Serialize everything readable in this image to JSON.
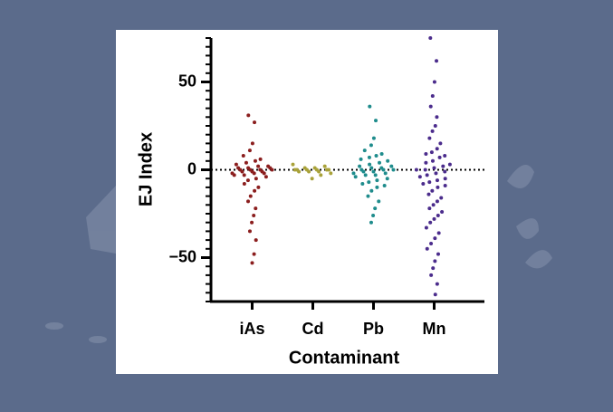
{
  "chart_data": {
    "type": "beeswarm",
    "ylabel": "EJ Index",
    "xlabel": "Contaminant",
    "categories": [
      "iAs",
      "Cd",
      "Pb",
      "Mn"
    ],
    "colors": [
      "#8b1e1e",
      "#a9a23a",
      "#1f8c8c",
      "#4b2c8c"
    ],
    "values": [
      [
        31,
        27,
        15,
        11,
        8,
        6,
        5,
        4,
        3,
        2,
        2,
        1,
        1,
        1,
        0,
        0,
        0,
        0,
        -1,
        -1,
        -1,
        -2,
        -2,
        -2,
        -3,
        -3,
        -4,
        -5,
        -6,
        -8,
        -10,
        -12,
        -15,
        -18,
        -22,
        -26,
        -30,
        -35,
        -40,
        -48,
        -53
      ],
      [
        3,
        2,
        1,
        1,
        0,
        0,
        0,
        0,
        0,
        0,
        -1,
        -1,
        -1,
        -2,
        -3,
        -5
      ],
      [
        36,
        28,
        18,
        14,
        11,
        9,
        8,
        7,
        6,
        5,
        4,
        3,
        2,
        2,
        1,
        1,
        0,
        0,
        0,
        -1,
        -1,
        -2,
        -2,
        -3,
        -3,
        -4,
        -5,
        -6,
        -7,
        -8,
        -9,
        -10,
        -12,
        -15,
        -18,
        -22,
        -26,
        -30
      ],
      [
        75,
        62,
        50,
        42,
        36,
        30,
        25,
        22,
        18,
        15,
        12,
        10,
        9,
        8,
        7,
        5,
        4,
        3,
        2,
        1,
        0,
        0,
        -1,
        -2,
        -3,
        -4,
        -5,
        -6,
        -7,
        -8,
        -9,
        -10,
        -12,
        -14,
        -16,
        -18,
        -20,
        -22,
        -24,
        -26,
        -28,
        -30,
        -33,
        -36,
        -39,
        -42,
        -45,
        -48,
        -52,
        -56,
        -60,
        -65,
        -71
      ]
    ],
    "ylim": [
      -75,
      75
    ],
    "yticks": [
      {
        "value": -50,
        "label": "−50"
      },
      0,
      50
    ],
    "yminorticks": [
      -75,
      -70,
      -65,
      -60,
      -55,
      -50,
      -45,
      -40,
      -35,
      -30,
      -25,
      -20,
      -15,
      -10,
      -5,
      0,
      5,
      10,
      15,
      20,
      25,
      30,
      35,
      40,
      45,
      50,
      55,
      60,
      65,
      70,
      75
    ],
    "zero_line": true
  }
}
